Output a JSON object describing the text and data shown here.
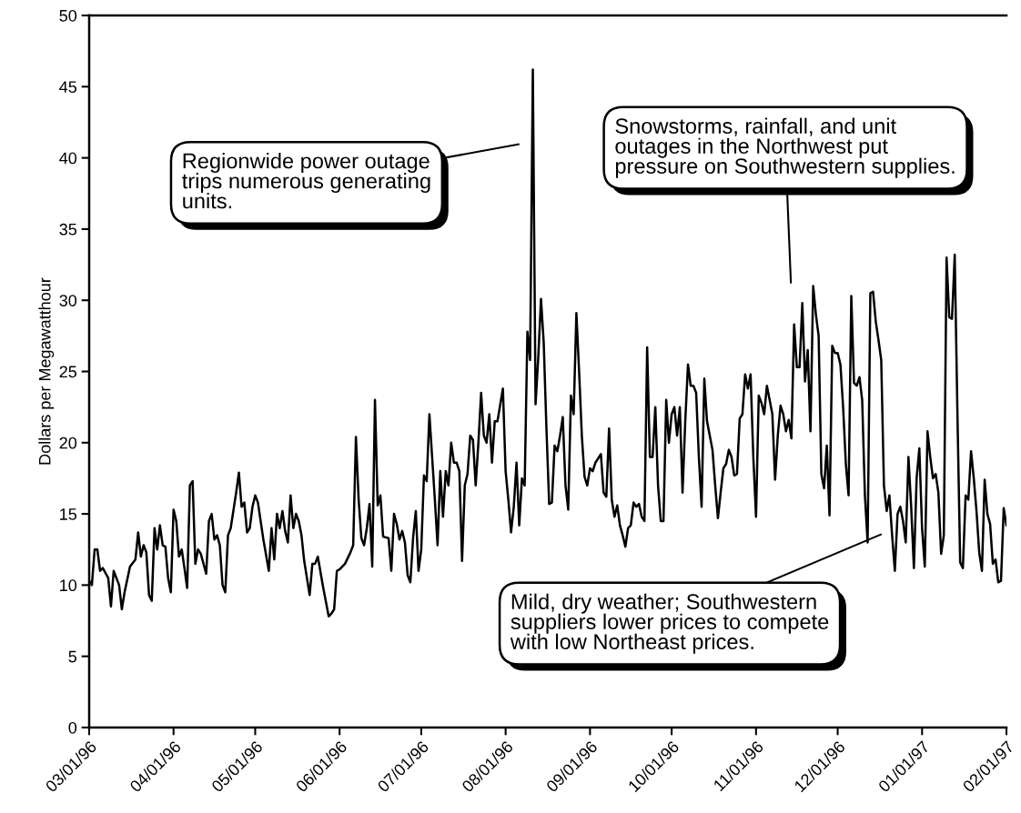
{
  "chart_data": {
    "type": "line",
    "ylabel": "Dollars per Megawatthour",
    "x": [
      "1996-03-01",
      "1996-03-02",
      "1996-03-03",
      "1996-03-04",
      "1996-03-05",
      "1996-03-06",
      "1996-03-08",
      "1996-03-09",
      "1996-03-10",
      "1996-03-12",
      "1996-03-13",
      "1996-03-14",
      "1996-03-16",
      "1996-03-18",
      "1996-03-19",
      "1996-03-20",
      "1996-03-21",
      "1996-03-22",
      "1996-03-23",
      "1996-03-24",
      "1996-03-25",
      "1996-03-26",
      "1996-03-27",
      "1996-03-28",
      "1996-03-29",
      "1996-03-30",
      "1996-03-31",
      "1996-04-01",
      "1996-04-02",
      "1996-04-03",
      "1996-04-04",
      "1996-04-05",
      "1996-04-06",
      "1996-04-07",
      "1996-04-08",
      "1996-04-09",
      "1996-04-10",
      "1996-04-11",
      "1996-04-13",
      "1996-04-14",
      "1996-04-15",
      "1996-04-16",
      "1996-04-17",
      "1996-04-18",
      "1996-04-19",
      "1996-04-20",
      "1996-04-21",
      "1996-04-22",
      "1996-04-24",
      "1996-04-25",
      "1996-04-26",
      "1996-04-27",
      "1996-04-28",
      "1996-04-29",
      "1996-04-30",
      "1996-05-01",
      "1996-05-02",
      "1996-05-04",
      "1996-05-06",
      "1996-05-07",
      "1996-05-08",
      "1996-05-09",
      "1996-05-10",
      "1996-05-11",
      "1996-05-12",
      "1996-05-13",
      "1996-05-14",
      "1996-05-15",
      "1996-05-16",
      "1996-05-17",
      "1996-05-18",
      "1996-05-19",
      "1996-05-21",
      "1996-05-22",
      "1996-05-23",
      "1996-05-24",
      "1996-05-26",
      "1996-05-28",
      "1996-05-29",
      "1996-05-30",
      "1996-05-31",
      "1996-06-01",
      "1996-06-03",
      "1996-06-05",
      "1996-06-06",
      "1996-06-07",
      "1996-06-08",
      "1996-06-09",
      "1996-06-10",
      "1996-06-11",
      "1996-06-12",
      "1996-06-13",
      "1996-06-14",
      "1996-06-15",
      "1996-06-16",
      "1996-06-17",
      "1996-06-19",
      "1996-06-20",
      "1996-06-21",
      "1996-06-22",
      "1996-06-23",
      "1996-06-24",
      "1996-06-25",
      "1996-06-26",
      "1996-06-27",
      "1996-06-28",
      "1996-06-29",
      "1996-06-30",
      "1996-07-01",
      "1996-07-02",
      "1996-07-03",
      "1996-07-04",
      "1996-07-05",
      "1996-07-06",
      "1996-07-07",
      "1996-07-08",
      "1996-07-09",
      "1996-07-10",
      "1996-07-11",
      "1996-07-12",
      "1996-07-13",
      "1996-07-14",
      "1996-07-15",
      "1996-07-16",
      "1996-07-17",
      "1996-07-18",
      "1996-07-19",
      "1996-07-20",
      "1996-07-21",
      "1996-07-22",
      "1996-07-23",
      "1996-07-24",
      "1996-07-25",
      "1996-07-26",
      "1996-07-27",
      "1996-07-28",
      "1996-07-29",
      "1996-07-31",
      "1996-08-01",
      "1996-08-02",
      "1996-08-03",
      "1996-08-04",
      "1996-08-05",
      "1996-08-06",
      "1996-08-07",
      "1996-08-08",
      "1996-08-09",
      "1996-08-10",
      "1996-08-11",
      "1996-08-12",
      "1996-08-13",
      "1996-08-14",
      "1996-08-15",
      "1996-08-16",
      "1996-08-17",
      "1996-08-18",
      "1996-08-19",
      "1996-08-20",
      "1996-08-21",
      "1996-08-22",
      "1996-08-23",
      "1996-08-24",
      "1996-08-25",
      "1996-08-26",
      "1996-08-27",
      "1996-08-28",
      "1996-08-29",
      "1996-08-30",
      "1996-08-31",
      "1996-09-01",
      "1996-09-02",
      "1996-09-03",
      "1996-09-05",
      "1996-09-06",
      "1996-09-07",
      "1996-09-08",
      "1996-09-09",
      "1996-09-10",
      "1996-09-11",
      "1996-09-12",
      "1996-09-13",
      "1996-09-14",
      "1996-09-15",
      "1996-09-16",
      "1996-09-17",
      "1996-09-18",
      "1996-09-19",
      "1996-09-20",
      "1996-09-21",
      "1996-09-22",
      "1996-09-23",
      "1996-09-24",
      "1996-09-25",
      "1996-09-26",
      "1996-09-27",
      "1996-09-28",
      "1996-09-29",
      "1996-09-30",
      "1996-10-01",
      "1996-10-02",
      "1996-10-03",
      "1996-10-04",
      "1996-10-05",
      "1996-10-06",
      "1996-10-07",
      "1996-10-08",
      "1996-10-09",
      "1996-10-10",
      "1996-10-11",
      "1996-10-12",
      "1996-10-13",
      "1996-10-14",
      "1996-10-15",
      "1996-10-16",
      "1996-10-17",
      "1996-10-18",
      "1996-10-19",
      "1996-10-20",
      "1996-10-21",
      "1996-10-22",
      "1996-10-23",
      "1996-10-24",
      "1996-10-25",
      "1996-10-26",
      "1996-10-27",
      "1996-10-28",
      "1996-10-29",
      "1996-10-30",
      "1996-10-31",
      "1996-11-01",
      "1996-11-02",
      "1996-11-03",
      "1996-11-04",
      "1996-11-05",
      "1996-11-06",
      "1996-11-07",
      "1996-11-08",
      "1996-11-09",
      "1996-11-10",
      "1996-11-11",
      "1996-11-12",
      "1996-11-13",
      "1996-11-14",
      "1996-11-15",
      "1996-11-16",
      "1996-11-17",
      "1996-11-18",
      "1996-11-19",
      "1996-11-20",
      "1996-11-21",
      "1996-11-22",
      "1996-11-23",
      "1996-11-24",
      "1996-11-25",
      "1996-11-26",
      "1996-11-27",
      "1996-11-28",
      "1996-11-29",
      "1996-11-30",
      "1996-12-01",
      "1996-12-02",
      "1996-12-03",
      "1996-12-04",
      "1996-12-05",
      "1996-12-06",
      "1996-12-07",
      "1996-12-08",
      "1996-12-09",
      "1996-12-10",
      "1996-12-11",
      "1996-12-12",
      "1996-12-13",
      "1996-12-14",
      "1996-12-15",
      "1996-12-16",
      "1996-12-17",
      "1996-12-18",
      "1996-12-19",
      "1996-12-20",
      "1996-12-21",
      "1996-12-22",
      "1996-12-23",
      "1996-12-24",
      "1996-12-25",
      "1996-12-26",
      "1996-12-27",
      "1996-12-28",
      "1996-12-29",
      "1996-12-30",
      "1996-12-31",
      "1997-01-01",
      "1997-01-02",
      "1997-01-03",
      "1997-01-04",
      "1997-01-05",
      "1997-01-06",
      "1997-01-07",
      "1997-01-08",
      "1997-01-09",
      "1997-01-10",
      "1997-01-11",
      "1997-01-12",
      "1997-01-13",
      "1997-01-14",
      "1997-01-15",
      "1997-01-16",
      "1997-01-17",
      "1997-01-18",
      "1997-01-19",
      "1997-01-20",
      "1997-01-21",
      "1997-01-22",
      "1997-01-23",
      "1997-01-24",
      "1997-01-25",
      "1997-01-26",
      "1997-01-27",
      "1997-01-28",
      "1997-01-29",
      "1997-01-30",
      "1997-01-31",
      "1997-02-01"
    ],
    "values": [
      10.3,
      10.0,
      12.5,
      12.5,
      11.0,
      11.2,
      10.5,
      8.5,
      11.0,
      10.0,
      8.3,
      9.5,
      11.3,
      11.8,
      13.7,
      12.0,
      12.8,
      12.3,
      9.3,
      8.9,
      14.0,
      12.5,
      14.2,
      12.8,
      12.7,
      10.5,
      9.5,
      15.3,
      14.5,
      12.0,
      12.5,
      11.2,
      9.8,
      17.0,
      17.3,
      11.5,
      12.5,
      12.2,
      10.8,
      14.5,
      15.0,
      13.2,
      13.5,
      12.8,
      10.0,
      9.5,
      13.5,
      14.0,
      16.5,
      17.9,
      15.5,
      15.8,
      13.7,
      14.0,
      15.5,
      16.3,
      15.8,
      13.2,
      11.0,
      14.0,
      11.8,
      15.0,
      14.0,
      15.2,
      13.8,
      13.0,
      16.3,
      14.0,
      15.0,
      14.5,
      13.5,
      11.7,
      9.3,
      11.5,
      11.5,
      12.0,
      9.8,
      7.8,
      8.0,
      8.3,
      11.0,
      11.1,
      11.5,
      12.3,
      12.8,
      20.4,
      16.0,
      13.3,
      12.8,
      14.0,
      15.7,
      11.3,
      23.0,
      15.6,
      16.3,
      13.4,
      13.3,
      11.0,
      15.0,
      14.3,
      13.2,
      13.8,
      13.0,
      10.7,
      10.2,
      13.3,
      15.2,
      11.0,
      12.5,
      17.7,
      17.3,
      22.0,
      19.0,
      16.0,
      12.8,
      18.0,
      14.8,
      18.0,
      17.0,
      20.0,
      18.6,
      18.6,
      18.0,
      11.7,
      17.0,
      17.8,
      20.5,
      20.2,
      17.0,
      20.0,
      23.5,
      20.5,
      20.0,
      22.0,
      18.6,
      21.5,
      21.5,
      23.8,
      18.0,
      16.0,
      13.7,
      15.5,
      18.6,
      14.2,
      17.5,
      17.0,
      27.8,
      25.8,
      46.2,
      22.7,
      26.0,
      30.1,
      27.0,
      21.0,
      15.7,
      15.8,
      19.8,
      19.4,
      20.5,
      21.8,
      17.0,
      15.3,
      23.3,
      22.0,
      29.1,
      25.0,
      20.5,
      17.6,
      17.0,
      18.2,
      18.0,
      18.6,
      19.2,
      16.5,
      16.2,
      21.0,
      16.0,
      14.8,
      15.6,
      14.2,
      13.5,
      12.7,
      14.0,
      14.2,
      15.8,
      15.5,
      15.7,
      14.8,
      14.5,
      26.7,
      19.0,
      19.0,
      22.5,
      17.0,
      14.5,
      14.5,
      23.0,
      20.0,
      22.0,
      22.5,
      20.5,
      22.5,
      16.5,
      21.5,
      25.5,
      24.0,
      24.0,
      23.5,
      19.0,
      15.5,
      24.5,
      21.5,
      20.5,
      19.5,
      17.0,
      14.7,
      16.5,
      18.2,
      18.5,
      19.5,
      19.0,
      17.7,
      17.8,
      21.7,
      22.0,
      24.8,
      23.8,
      24.8,
      19.0,
      14.8,
      23.3,
      22.8,
      22.0,
      24.0,
      23.0,
      22.0,
      17.4,
      20.5,
      22.6,
      22.0,
      20.8,
      21.6,
      20.3,
      28.3,
      25.3,
      25.3,
      29.8,
      24.3,
      26.5,
      20.8,
      31.0,
      29.0,
      27.5,
      17.8,
      16.8,
      19.8,
      14.9,
      26.8,
      26.3,
      26.3,
      25.5,
      22.5,
      18.5,
      16.3,
      30.3,
      24.2,
      24.0,
      24.6,
      23.0,
      16.3,
      13.0,
      30.5,
      30.6,
      28.5,
      27.2,
      25.8,
      17.0,
      15.2,
      16.3,
      13.5,
      11.0,
      15.0,
      15.5,
      14.5,
      13.0,
      19.0,
      15.5,
      11.2,
      17.5,
      19.6,
      14.0,
      11.3,
      20.8,
      19.0,
      17.5,
      17.8,
      16.5,
      12.2,
      13.5,
      33.0,
      28.8,
      28.7,
      33.2,
      22.0,
      11.6,
      11.2,
      16.3,
      16.0,
      19.4,
      17.5,
      15.2,
      12.3,
      11.0,
      17.4,
      15.0,
      14.3,
      11.5,
      11.8,
      10.2,
      10.3,
      15.4,
      14.2
    ],
    "color": "#000000",
    "xlim": [
      "1996-03-01",
      "1997-02-01"
    ],
    "xticks": [
      {
        "value": "1996-03-01",
        "label": "03/01/96"
      },
      {
        "value": "1996-04-01",
        "label": "04/01/96"
      },
      {
        "value": "1996-05-01",
        "label": "05/01/96"
      },
      {
        "value": "1996-06-01",
        "label": "06/01/96"
      },
      {
        "value": "1996-07-01",
        "label": "07/01/96"
      },
      {
        "value": "1996-08-01",
        "label": "08/01/96"
      },
      {
        "value": "1996-09-01",
        "label": "09/01/96"
      },
      {
        "value": "1996-10-01",
        "label": "10/01/96"
      },
      {
        "value": "1996-11-01",
        "label": "11/01/96"
      },
      {
        "value": "1996-12-01",
        "label": "12/01/96"
      },
      {
        "value": "1997-01-01",
        "label": "01/01/97"
      },
      {
        "value": "1997-02-01",
        "label": "02/01/97"
      }
    ],
    "ylim": [
      0,
      50
    ],
    "yticks": [
      0,
      5,
      10,
      15,
      20,
      25,
      30,
      35,
      40,
      45,
      50
    ],
    "grid": false,
    "marker": "none",
    "line_style": "solid",
    "annotations": [
      "Regionwide power outage\ntrips numerous generating\nunits.",
      "Snowstorms, rainfall, and unit\noutages in the Northwest put\npressure on Southwestern supplies.",
      "Mild, dry weather; Southwestern\nsuppliers lower prices to compete\nwith low Northeast prices."
    ]
  }
}
